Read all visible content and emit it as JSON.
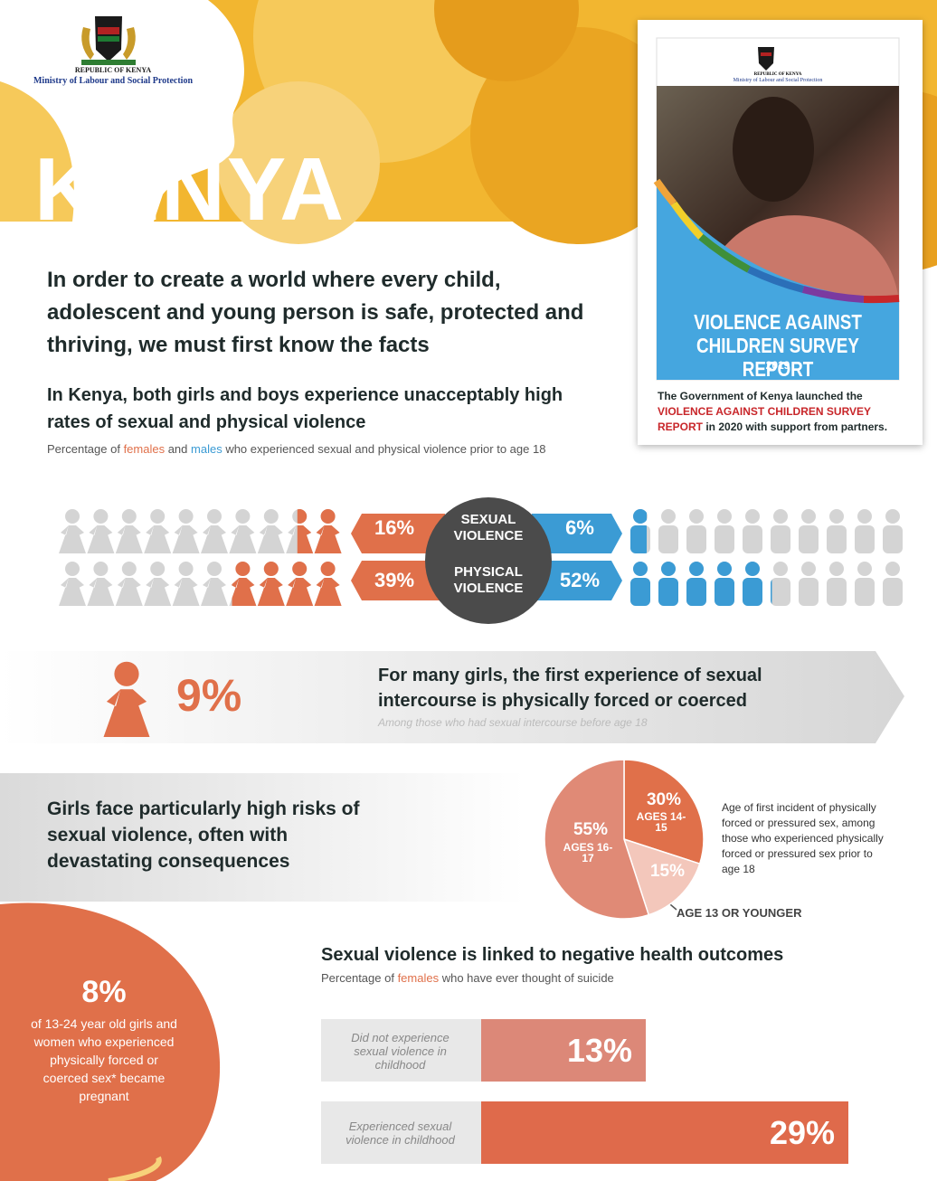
{
  "header": {
    "republic": "REPUBLIC OF KENYA",
    "ministry": "Ministry of Labour and Social Protection",
    "title": "KENYA"
  },
  "cover": {
    "republic": "REPUBLIC OF KENYA",
    "ministry": "Ministry of Labour and Social Protection",
    "title": "VIOLENCE AGAINST CHILDREN SURVEY REPORT",
    "year": "2019",
    "caption_parts": [
      "The Government of Kenya launched the ",
      "VIOLENCE AGAINST CHILDREN SURVEY REPORT",
      " in 2020 with support from partners."
    ]
  },
  "intro": "In order to create a world where every child, adolescent and young person is safe, protected and thriving, we must first know the facts",
  "violence": {
    "heading": "In Kenya, both girls and boys experience unacceptably high rates of sexual and physical violence",
    "subtitle_parts": [
      "Percentage of ",
      "females",
      " and ",
      "males",
      " who experienced sexual and physical violence prior to age 18"
    ],
    "rows": [
      {
        "label": "SEXUAL VIOLENCE",
        "female": 16,
        "female_label": "16%",
        "male": 6,
        "male_label": "6%"
      },
      {
        "label": "PHYSICAL VIOLENCE",
        "female": 39,
        "female_label": "39%",
        "male": 52,
        "male_label": "52%"
      }
    ]
  },
  "forced": {
    "value": 9,
    "value_label": "9%",
    "heading": "For many girls, the first experience of sexual intercourse is physically forced or coerced",
    "note": "Among those who had sexual intercourse before age 18"
  },
  "girls_risk": {
    "heading": "Girls face particularly high risks of sexual violence, often with devastating consequences"
  },
  "pie": {
    "type": "pie",
    "categories": [
      "AGES 14-15",
      "AGE 13 OR YOUNGER",
      "AGES 16-17"
    ],
    "values": [
      30,
      15,
      55
    ],
    "value_labels": [
      "30%",
      "15%",
      "55%"
    ],
    "colors": [
      "#e0704a",
      "#f3c7bb",
      "#e08a76"
    ],
    "description": "Age of first incident of physically forced or pressured sex, among those who experienced physically forced or pressured sex prior to age 18"
  },
  "pregnant": {
    "value": 8,
    "value_label": "8%",
    "text": "of 13-24 year old girls and women who experienced physically forced or coerced sex* became pregnant"
  },
  "health": {
    "type": "bar",
    "heading": "Sexual violence is linked to negative health outcomes",
    "subtitle_parts": [
      "Percentage of ",
      "females",
      " who have ever thought of suicide"
    ],
    "categories": [
      "Did not experience sexual violence in childhood",
      "Experienced sexual violence in childhood"
    ],
    "values": [
      13,
      29
    ],
    "value_labels": [
      "13%",
      "29%"
    ],
    "colors": [
      "#dc8878",
      "#df6a4b"
    ]
  }
}
